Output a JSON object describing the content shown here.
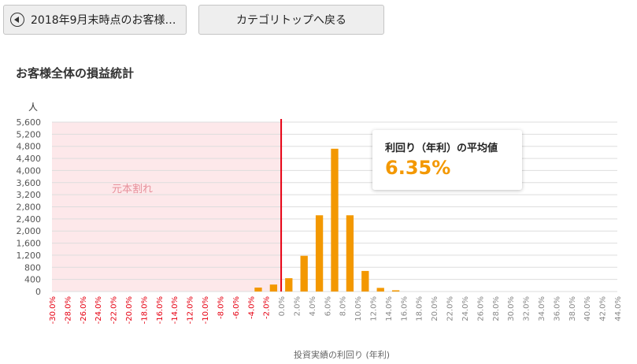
{
  "toolbar": {
    "back_label": "2018年9月末時点のお客様全...",
    "category_top_label": "カテゴリトップへ戻る"
  },
  "page_title": "お客様全体の損益統計",
  "average_card": {
    "label": "利回り（年利）の平均値",
    "value": "6.35%"
  },
  "colors": {
    "bar": "#f39800",
    "loss_zone": "#fde8ea",
    "zero_line": "#e60012",
    "negative_tick": "#e60012",
    "positive_tick": "#888888",
    "average_value": "#f39800"
  },
  "chart_data": {
    "type": "bar",
    "title": "",
    "ylabel": "人",
    "xlabel": "投資実績の利回り (年利)",
    "ylim": [
      0,
      5600
    ],
    "yticks": [
      0,
      400,
      800,
      1200,
      1600,
      2000,
      2400,
      2800,
      3200,
      3600,
      4000,
      4400,
      4800,
      5200,
      5600
    ],
    "ytick_labels": [
      "0",
      "400",
      "800",
      "1,200",
      "1,600",
      "2,000",
      "2,400",
      "2,800",
      "3,200",
      "3,600",
      "4,000",
      "4,400",
      "4,800",
      "5,200",
      "5,600"
    ],
    "xlim": [
      -30,
      44
    ],
    "xtick_labels": [
      "-30.0%",
      "-28.0%",
      "-26.0%",
      "-24.0%",
      "-22.0%",
      "-20.0%",
      "-18.0%",
      "-16.0%",
      "-14.0%",
      "-12.0%",
      "-10.0%",
      "-8.0%",
      "-6.0%",
      "-4.0%",
      "-2.0%",
      "0.0%",
      "2.0%",
      "4.0%",
      "6.0%",
      "8.0%",
      "10.0%",
      "12.0%",
      "14.0%",
      "16.0%",
      "18.0%",
      "20.0%",
      "22.0%",
      "24.0%",
      "26.0%",
      "28.0%",
      "30.0%",
      "32.0%",
      "34.0%",
      "36.0%",
      "38.0%",
      "40.0%",
      "42.0%",
      "44.0%"
    ],
    "bin_width": 2,
    "bars": [
      {
        "x": -3,
        "value": 130
      },
      {
        "x": -1,
        "value": 230
      },
      {
        "x": 1,
        "value": 440
      },
      {
        "x": 3,
        "value": 1180
      },
      {
        "x": 5,
        "value": 2520
      },
      {
        "x": 7,
        "value": 4720
      },
      {
        "x": 9,
        "value": 2520
      },
      {
        "x": 11,
        "value": 680
      },
      {
        "x": 13,
        "value": 120
      },
      {
        "x": 15,
        "value": 40
      }
    ],
    "zero_line_x": 0,
    "loss_region": {
      "from": -30,
      "to": 0,
      "label": "元本割れ"
    },
    "grid": true,
    "legend": "none"
  }
}
